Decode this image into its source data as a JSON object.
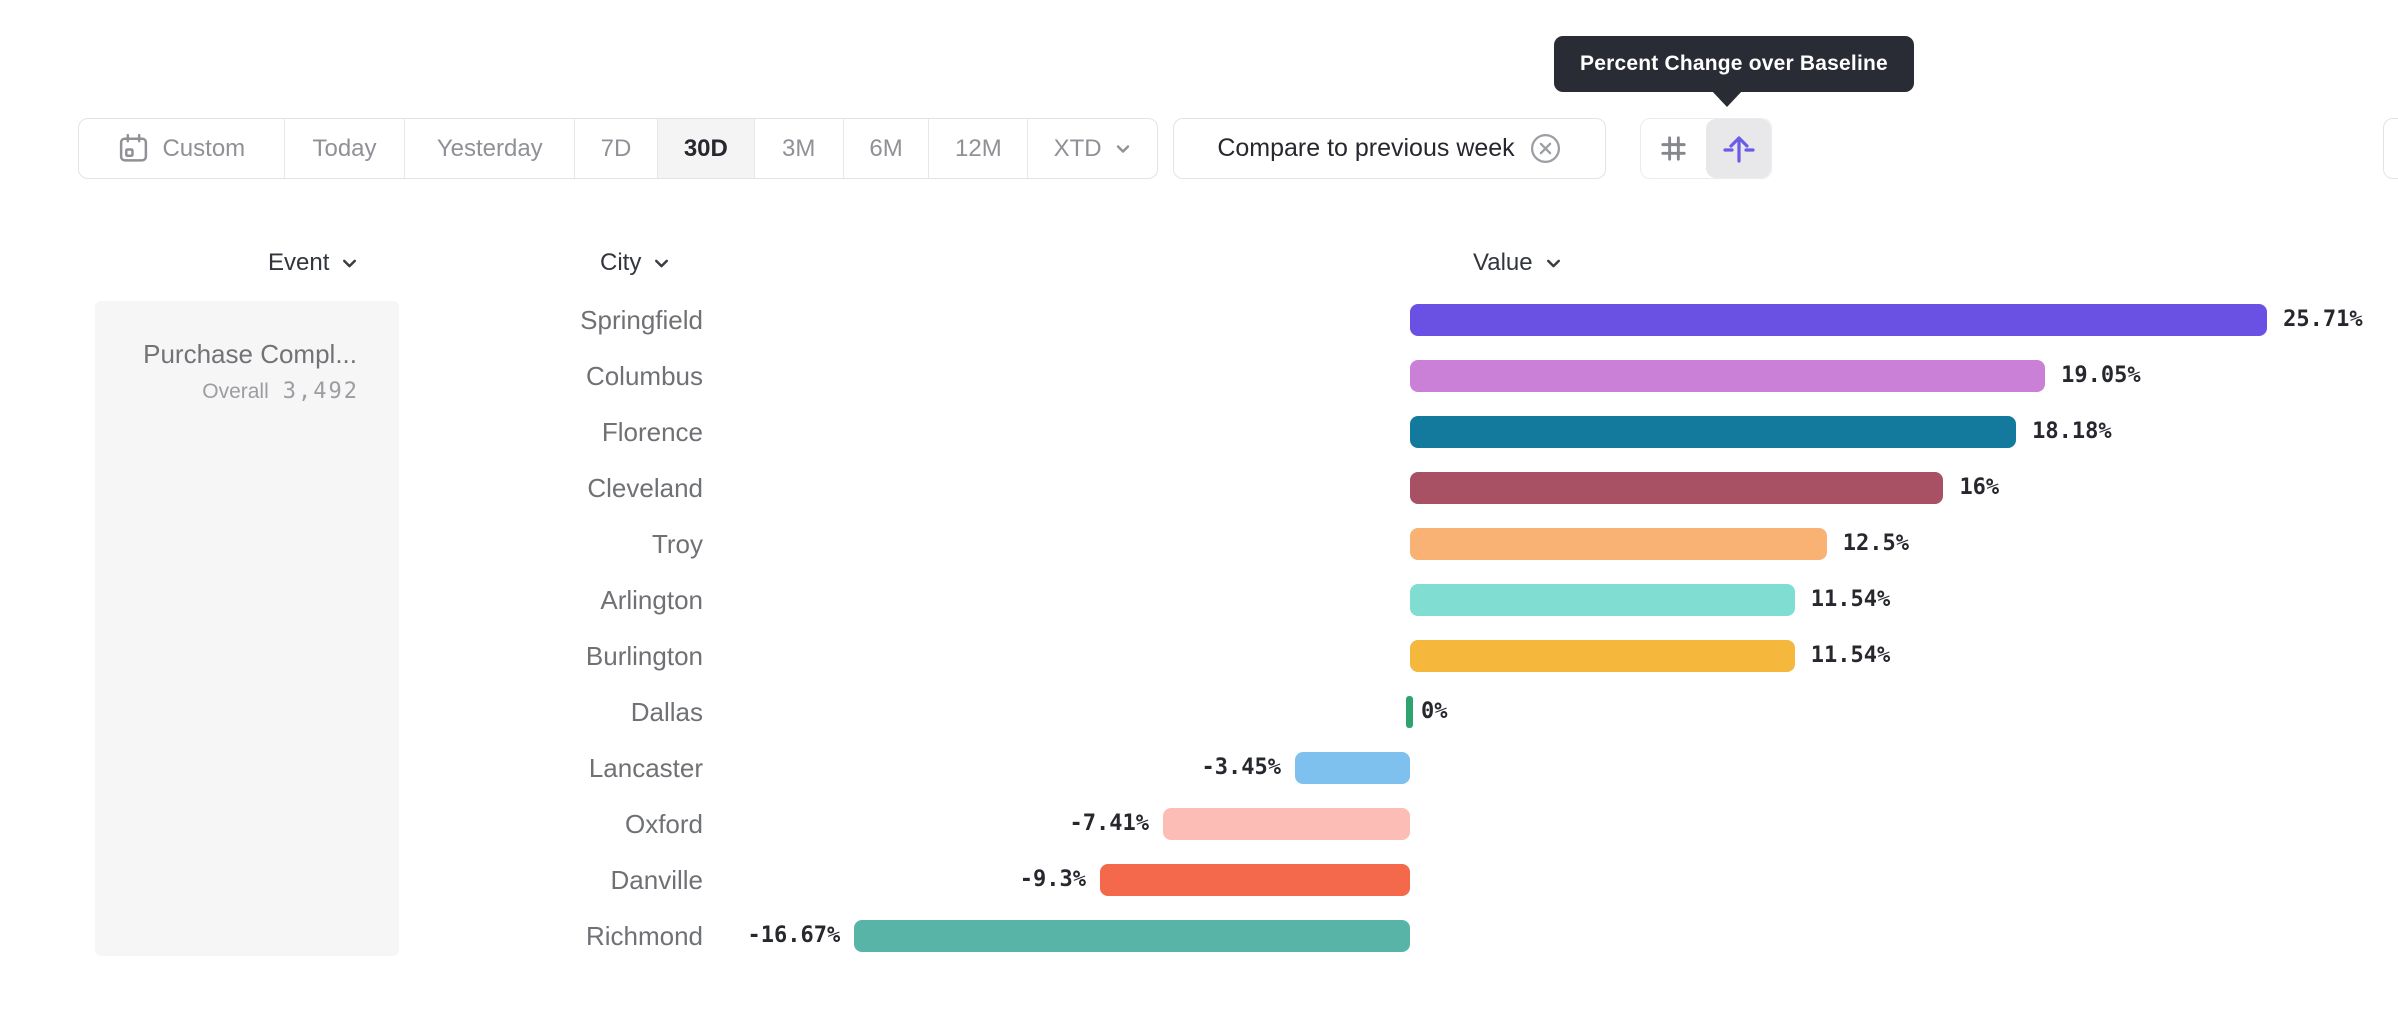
{
  "tooltip": {
    "text": "Percent Change over Baseline"
  },
  "toolbar": {
    "date_ranges": [
      {
        "label": "Custom",
        "icon": "calendar-icon",
        "selected": false
      },
      {
        "label": "Today",
        "selected": false
      },
      {
        "label": "Yesterday",
        "selected": false
      },
      {
        "label": "7D",
        "selected": false
      },
      {
        "label": "30D",
        "selected": true
      },
      {
        "label": "3M",
        "selected": false
      },
      {
        "label": "6M",
        "selected": false
      },
      {
        "label": "12M",
        "selected": false
      },
      {
        "label": "XTD",
        "icon": "chevron-down-icon",
        "selected": false
      }
    ],
    "compare": {
      "label": "Compare to previous week",
      "icon": "close-circle-icon"
    },
    "view_toggle": [
      {
        "icon": "grid-hash-icon",
        "selected": false
      },
      {
        "icon": "baseline-arrow-icon",
        "selected": true,
        "accent": "#6a5be8"
      }
    ]
  },
  "columns": {
    "event": {
      "label": "Event"
    },
    "city": {
      "label": "City"
    },
    "value": {
      "label": "Value"
    }
  },
  "event_panel": {
    "event_name": "Purchase Compl...",
    "overall_label": "Overall",
    "overall_value": "3,492"
  },
  "chart_data": {
    "type": "bar",
    "orientation": "horizontal",
    "unit": "%",
    "baseline": 0,
    "xlim": [
      -16.67,
      25.71
    ],
    "categories": [
      "Springfield",
      "Columbus",
      "Florence",
      "Cleveland",
      "Troy",
      "Arlington",
      "Burlington",
      "Dallas",
      "Lancaster",
      "Oxford",
      "Danville",
      "Richmond"
    ],
    "values": [
      25.71,
      19.05,
      18.18,
      16,
      12.5,
      11.54,
      11.54,
      0,
      -3.45,
      -7.41,
      -9.3,
      -16.67
    ],
    "labels": [
      "25.71%",
      "19.05%",
      "18.18%",
      "16%",
      "12.5%",
      "11.54%",
      "11.54%",
      "0%",
      "-3.45%",
      "-7.41%",
      "-9.3%",
      "-16.67%"
    ],
    "colors": [
      "#6a51e4",
      "#c980d6",
      "#147a9d",
      "#a85064",
      "#fab174",
      "#80ddd1",
      "#f6b73d",
      "#2fa36e",
      "#7fc1ee",
      "#fbbdb5",
      "#f4694c",
      "#58b4a7"
    ],
    "value_text_color": "#26282e"
  }
}
